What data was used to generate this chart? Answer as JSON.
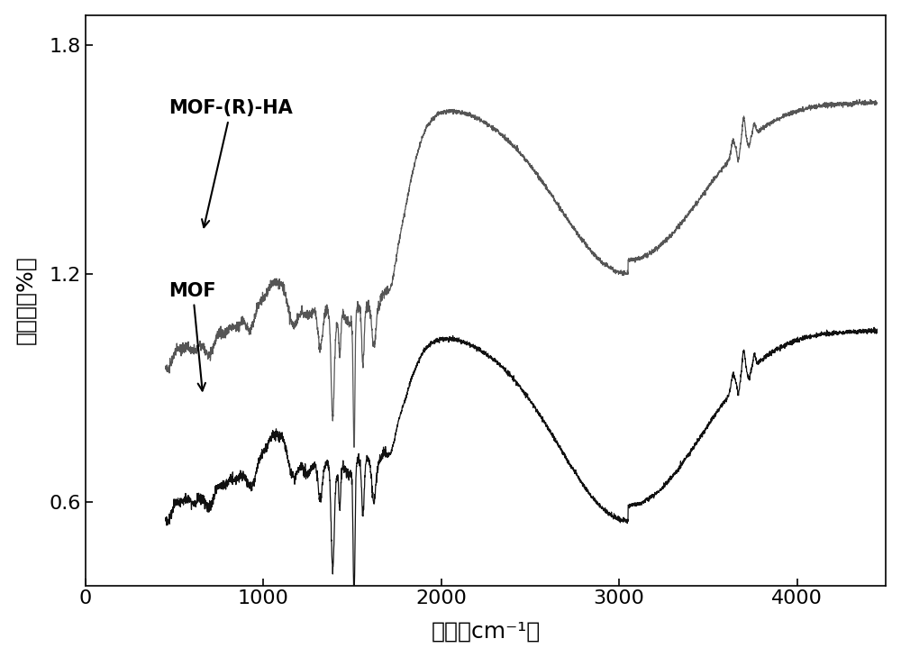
{
  "xlabel": "波数（cm⁻¹）",
  "ylabel": "透光率（%）",
  "xlim": [
    0,
    4500
  ],
  "ylim": [
    0.38,
    1.88
  ],
  "yticks": [
    0.6,
    1.2,
    1.8
  ],
  "xticks": [
    0,
    1000,
    2000,
    3000,
    4000
  ],
  "label_mof_rha": "MOF-(R)-HA",
  "label_mof": "MOF",
  "line_color_rha": "#555555",
  "line_color_mof": "#111111",
  "background_color": "#ffffff",
  "xlabel_fontsize": 18,
  "ylabel_fontsize": 18,
  "tick_fontsize": 16,
  "annotation_fontsize": 15,
  "mof_base": 0.57,
  "rha_base": 0.97,
  "mof_plateau": 1.05,
  "rha_plateau": 1.65,
  "mof_oh_min": 0.55,
  "rha_oh_min": 1.2
}
